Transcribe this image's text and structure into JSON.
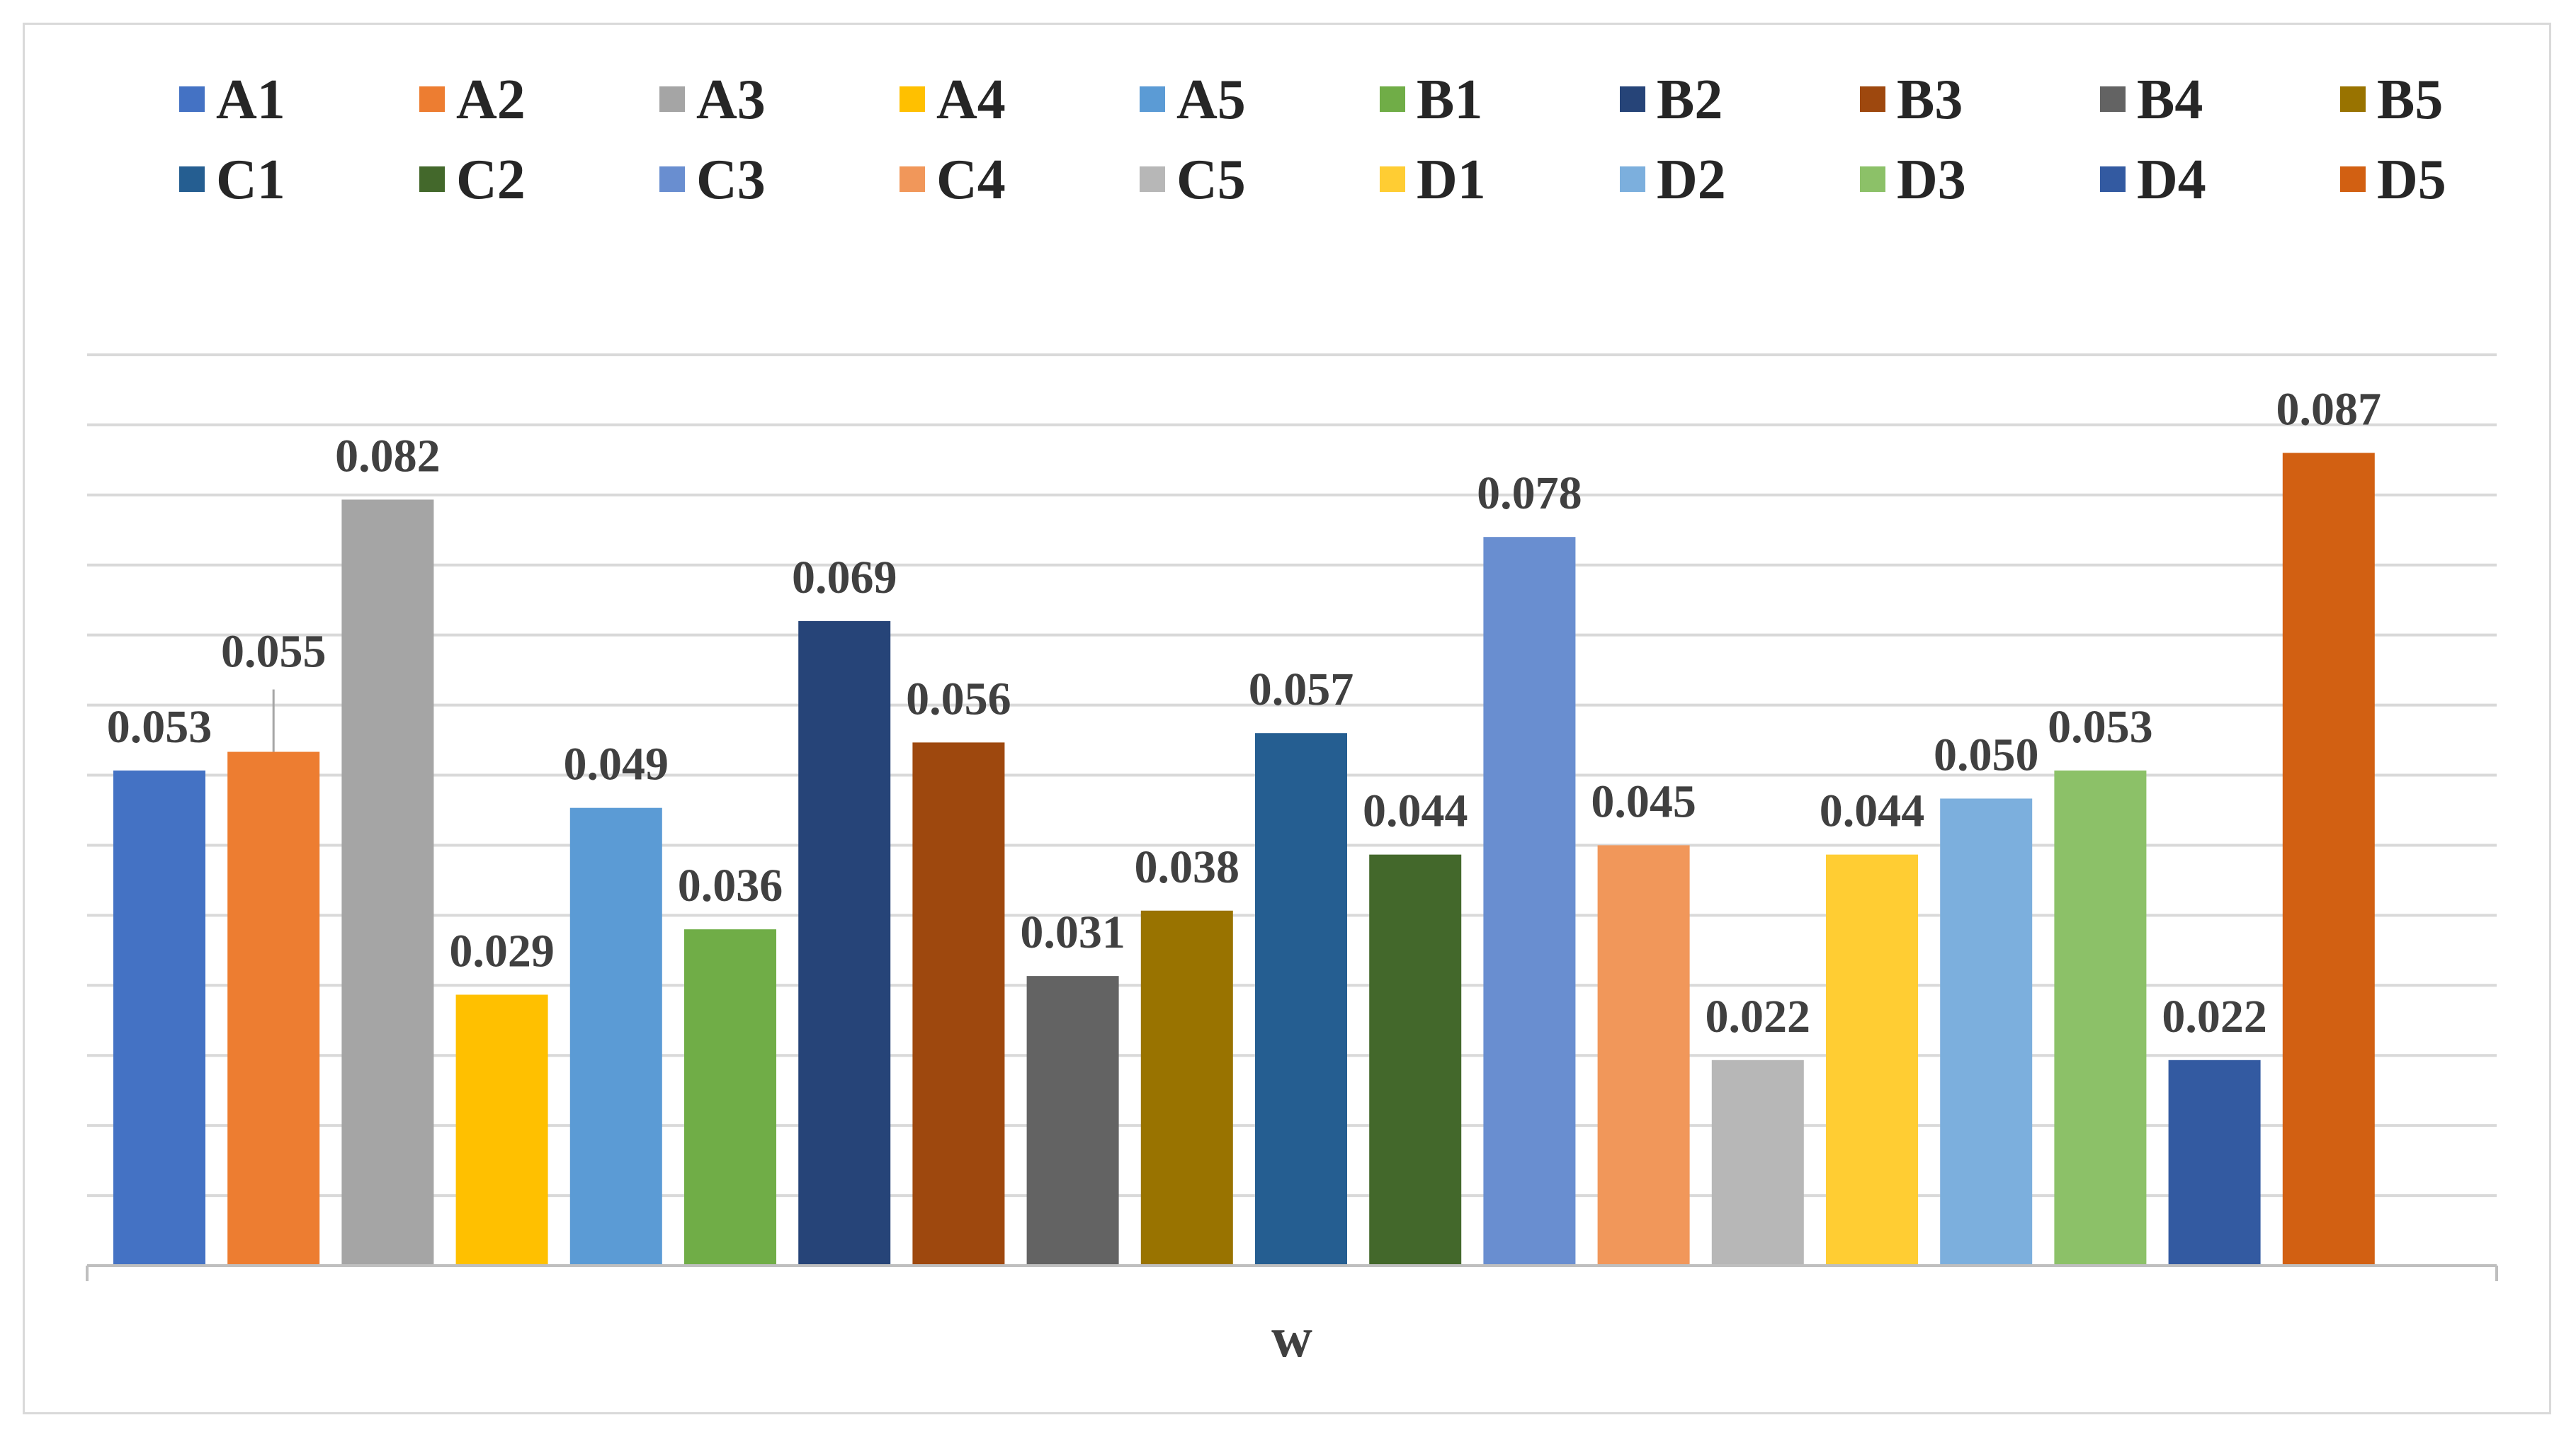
{
  "chart_data": {
    "type": "bar",
    "title": "",
    "xlabel": "w",
    "ylabel": "",
    "ylim": [
      0,
      0.1
    ],
    "grid": true,
    "legend_position": "top",
    "categories": [
      "w"
    ],
    "series": [
      {
        "name": "A1",
        "value": 0.053,
        "label": "0.053",
        "color": "#4472C4"
      },
      {
        "name": "A2",
        "value": 0.055,
        "label": "0.055",
        "color": "#ED7D31"
      },
      {
        "name": "A3",
        "value": 0.082,
        "label": "0.082",
        "color": "#A5A5A5"
      },
      {
        "name": "A4",
        "value": 0.029,
        "label": "0.029",
        "color": "#FFC000"
      },
      {
        "name": "A5",
        "value": 0.049,
        "label": "0.049",
        "color": "#5B9BD5"
      },
      {
        "name": "B1",
        "value": 0.036,
        "label": "0.036",
        "color": "#70AD47"
      },
      {
        "name": "B2",
        "value": 0.069,
        "label": "0.069",
        "color": "#264478"
      },
      {
        "name": "B3",
        "value": 0.056,
        "label": "0.056",
        "color": "#9E480E"
      },
      {
        "name": "B4",
        "value": 0.031,
        "label": "0.031",
        "color": "#636363"
      },
      {
        "name": "B5",
        "value": 0.038,
        "label": "0.038",
        "color": "#997300"
      },
      {
        "name": "C1",
        "value": 0.057,
        "label": "0.057",
        "color": "#255E91"
      },
      {
        "name": "C2",
        "value": 0.044,
        "label": "0.044",
        "color": "#43682B"
      },
      {
        "name": "C3",
        "value": 0.078,
        "label": "0.078",
        "color": "#698ED0"
      },
      {
        "name": "C4",
        "value": 0.045,
        "label": "0.045",
        "color": "#F1975A"
      },
      {
        "name": "C5",
        "value": 0.022,
        "label": "0.022",
        "color": "#B7B7B7"
      },
      {
        "name": "D1",
        "value": 0.044,
        "label": "0.044",
        "color": "#FFCD33"
      },
      {
        "name": "D2",
        "value": 0.05,
        "label": "0.050",
        "color": "#7CAFDD"
      },
      {
        "name": "D3",
        "value": 0.053,
        "label": "0.053",
        "color": "#8CC168"
      },
      {
        "name": "D4",
        "value": 0.022,
        "label": "0.022",
        "color": "#335AA1"
      },
      {
        "name": "D5",
        "value": 0.087,
        "label": "0.087",
        "color": "#D26012"
      }
    ]
  }
}
